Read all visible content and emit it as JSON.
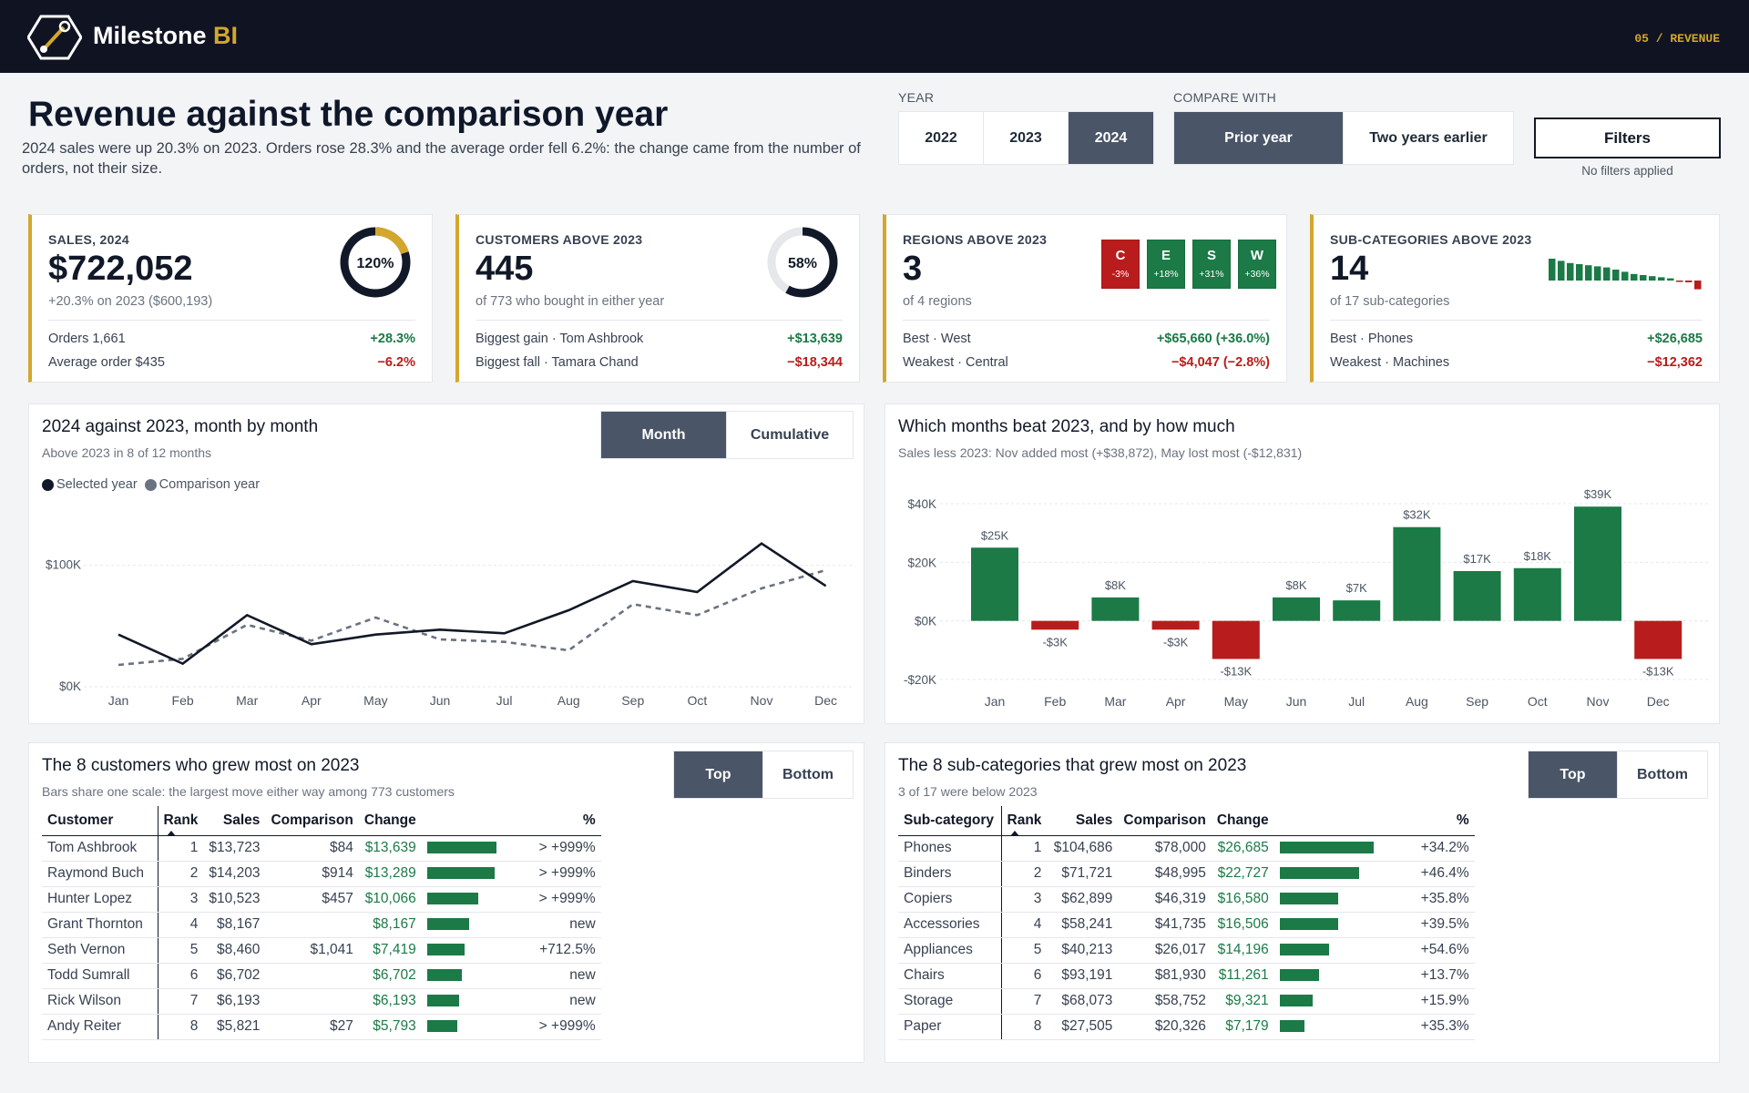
{
  "app": {
    "brand_main": "Milestone ",
    "brand_accent": "BI",
    "breadcrumb": "05 / REVENUE"
  },
  "header": {
    "title": "Revenue against the comparison year",
    "subtitle": "2024 sales were up 20.3% on 2023. Orders rose 28.3% and the average order fell 6.2%: the change came from the number of orders, not their size."
  },
  "controls": {
    "year_label": "YEAR",
    "years": [
      "2022",
      "2023",
      "2024"
    ],
    "selected_year": "2024",
    "compare_label": "COMPARE WITH",
    "compare_options": [
      "Prior year",
      "Two years earlier"
    ],
    "selected_compare": "Prior year",
    "filters_label": "Filters",
    "filters_status": "No filters applied"
  },
  "kpis": {
    "sales": {
      "label": "SALES, 2024",
      "value": "$722,052",
      "sub": "+20.3% on 2023 ($600,193)",
      "gauge_text": "120%",
      "gauge_fraction": 1.2,
      "rows": [
        {
          "label": "Orders 1,661",
          "value": "+28.3%"
        },
        {
          "label": "Average order $435",
          "value": "−6.2%"
        }
      ]
    },
    "customers": {
      "label": "CUSTOMERS ABOVE 2023",
      "value": "445",
      "sub": "of 773 who bought in either year",
      "gauge_text": "58%",
      "gauge_fraction": 0.58,
      "rows": [
        {
          "label": "Biggest gain · Tom Ashbrook",
          "value": "+$13,639"
        },
        {
          "label": "Biggest fall · Tamara Chand",
          "value": "−$18,344"
        }
      ]
    },
    "regions": {
      "label": "REGIONS ABOVE 2023",
      "value": "3",
      "sub": "of 4 regions",
      "boxes": [
        {
          "letter": "C",
          "pct": "-3%",
          "color": "#b91c1c"
        },
        {
          "letter": "E",
          "pct": "+18%",
          "color": "#1b7a46"
        },
        {
          "letter": "S",
          "pct": "+31%",
          "color": "#1b7a46"
        },
        {
          "letter": "W",
          "pct": "+36%",
          "color": "#1b7a46"
        }
      ],
      "rows": [
        {
          "label": "Best · West",
          "value": "+$65,660 (+36.0%)"
        },
        {
          "label": "Weakest · Central",
          "value": "−$4,047 (−2.8%)"
        }
      ]
    },
    "subcats": {
      "label": "SUB-CATEGORIES ABOVE 2023",
      "value": "14",
      "sub": "of 17 sub-categories",
      "spark": [
        10,
        9,
        8,
        7.5,
        7,
        6.5,
        6,
        5,
        4,
        3,
        2.5,
        2,
        1.5,
        1,
        -0.5,
        -0.8,
        -4
      ],
      "rows": [
        {
          "label": "Best · Phones",
          "value": "+$26,685"
        },
        {
          "label": "Weakest · Machines",
          "value": "−$12,362"
        }
      ]
    }
  },
  "line_panel": {
    "title": "2024 against 2023, month by month",
    "subtitle": "Above 2023 in 8 of 12 months",
    "toggle": [
      "Month",
      "Cumulative"
    ],
    "selected_toggle": "Month",
    "legend": [
      "Selected year",
      "Comparison year"
    ]
  },
  "bar_panel": {
    "title": "Which months beat 2023, and by how much",
    "subtitle": "Sales less 2023: Nov added most (+$38,872), May lost most (-$12,831)"
  },
  "chart_data": [
    {
      "type": "line",
      "x": [
        "Jan",
        "Feb",
        "Mar",
        "Apr",
        "May",
        "Jun",
        "Jul",
        "Aug",
        "Sep",
        "Oct",
        "Nov",
        "Dec"
      ],
      "ylim": [
        0,
        150000
      ],
      "yticks": [
        {
          "v": 0,
          "label": "$0K"
        },
        {
          "v": 100000,
          "label": "$100K"
        }
      ],
      "series": [
        {
          "name": "Selected year",
          "values": [
            43000,
            19000,
            59000,
            35000,
            43000,
            47000,
            44000,
            63000,
            87000,
            78000,
            118000,
            83000
          ]
        },
        {
          "name": "Comparison year",
          "values": [
            18000,
            23000,
            51000,
            38000,
            57000,
            39000,
            37000,
            30000,
            68000,
            59000,
            81000,
            96000
          ]
        }
      ]
    },
    {
      "type": "bar",
      "categories": [
        "Jan",
        "Feb",
        "Mar",
        "Apr",
        "May",
        "Jun",
        "Jul",
        "Aug",
        "Sep",
        "Oct",
        "Nov",
        "Dec"
      ],
      "values": [
        25000,
        -3000,
        8000,
        -3000,
        -13000,
        8000,
        7000,
        32000,
        17000,
        18000,
        39000,
        -13000
      ],
      "labels": [
        "$25K",
        "-$3K",
        "$8K",
        "-$3K",
        "-$13K",
        "$8K",
        "$7K",
        "$32K",
        "$17K",
        "$18K",
        "$39K",
        "-$13K"
      ],
      "ylim": [
        -20000,
        40000
      ],
      "yticks": [
        {
          "v": 40000,
          "label": "$40K"
        },
        {
          "v": 20000,
          "label": "$20K"
        },
        {
          "v": 0,
          "label": "$0K"
        },
        {
          "v": -20000,
          "label": "-$20K"
        }
      ]
    }
  ],
  "customers_table": {
    "title": "The 8 customers who grew most on 2023",
    "subtitle": "Bars share one scale: the largest move either way among 773 customers",
    "toggle": [
      "Top",
      "Bottom"
    ],
    "selected_toggle": "Top",
    "headers": [
      "Customer",
      "Rank",
      "Sales",
      "Comparison",
      "Change",
      "",
      "%"
    ],
    "rows": [
      {
        "name": "Tom Ashbrook",
        "rank": "1",
        "sales": "$13,723",
        "comp": "$84",
        "change": "$13,639",
        "bar": 0.74,
        "pct": "> +999%"
      },
      {
        "name": "Raymond Buch",
        "rank": "2",
        "sales": "$14,203",
        "comp": "$914",
        "change": "$13,289",
        "bar": 0.72,
        "pct": "> +999%"
      },
      {
        "name": "Hunter Lopez",
        "rank": "3",
        "sales": "$10,523",
        "comp": "$457",
        "change": "$10,066",
        "bar": 0.55,
        "pct": "> +999%"
      },
      {
        "name": "Grant Thornton",
        "rank": "4",
        "sales": "$8,167",
        "comp": "",
        "change": "$8,167",
        "bar": 0.45,
        "pct": "new"
      },
      {
        "name": "Seth Vernon",
        "rank": "5",
        "sales": "$8,460",
        "comp": "$1,041",
        "change": "$7,419",
        "bar": 0.4,
        "pct": "+712.5%"
      },
      {
        "name": "Todd Sumrall",
        "rank": "6",
        "sales": "$6,702",
        "comp": "",
        "change": "$6,702",
        "bar": 0.37,
        "pct": "new"
      },
      {
        "name": "Rick Wilson",
        "rank": "7",
        "sales": "$6,193",
        "comp": "",
        "change": "$6,193",
        "bar": 0.34,
        "pct": "new"
      },
      {
        "name": "Andy Reiter",
        "rank": "8",
        "sales": "$5,821",
        "comp": "$27",
        "change": "$5,793",
        "bar": 0.32,
        "pct": "> +999%"
      }
    ]
  },
  "subcats_table": {
    "title": "The 8 sub-categories that grew most on 2023",
    "subtitle": "3 of 17 were below 2023",
    "toggle": [
      "Top",
      "Bottom"
    ],
    "selected_toggle": "Top",
    "headers": [
      "Sub-category",
      "Rank",
      "Sales",
      "Comparison",
      "Change",
      "",
      "%"
    ],
    "rows": [
      {
        "name": "Phones",
        "rank": "1",
        "sales": "$104,686",
        "comp": "$78,000",
        "change": "$26,685",
        "bar": 1.0,
        "pct": "+34.2%"
      },
      {
        "name": "Binders",
        "rank": "2",
        "sales": "$71,721",
        "comp": "$48,995",
        "change": "$22,727",
        "bar": 0.85,
        "pct": "+46.4%"
      },
      {
        "name": "Copiers",
        "rank": "3",
        "sales": "$62,899",
        "comp": "$46,319",
        "change": "$16,580",
        "bar": 0.62,
        "pct": "+35.8%"
      },
      {
        "name": "Accessories",
        "rank": "4",
        "sales": "$58,241",
        "comp": "$41,735",
        "change": "$16,506",
        "bar": 0.62,
        "pct": "+39.5%"
      },
      {
        "name": "Appliances",
        "rank": "5",
        "sales": "$40,213",
        "comp": "$26,017",
        "change": "$14,196",
        "bar": 0.53,
        "pct": "+54.6%"
      },
      {
        "name": "Chairs",
        "rank": "6",
        "sales": "$93,191",
        "comp": "$81,930",
        "change": "$11,261",
        "bar": 0.42,
        "pct": "+13.7%"
      },
      {
        "name": "Storage",
        "rank": "7",
        "sales": "$68,073",
        "comp": "$58,752",
        "change": "$9,321",
        "bar": 0.35,
        "pct": "+15.9%"
      },
      {
        "name": "Paper",
        "rank": "8",
        "sales": "$27,505",
        "comp": "$20,326",
        "change": "$7,179",
        "bar": 0.27,
        "pct": "+35.3%"
      }
    ]
  }
}
